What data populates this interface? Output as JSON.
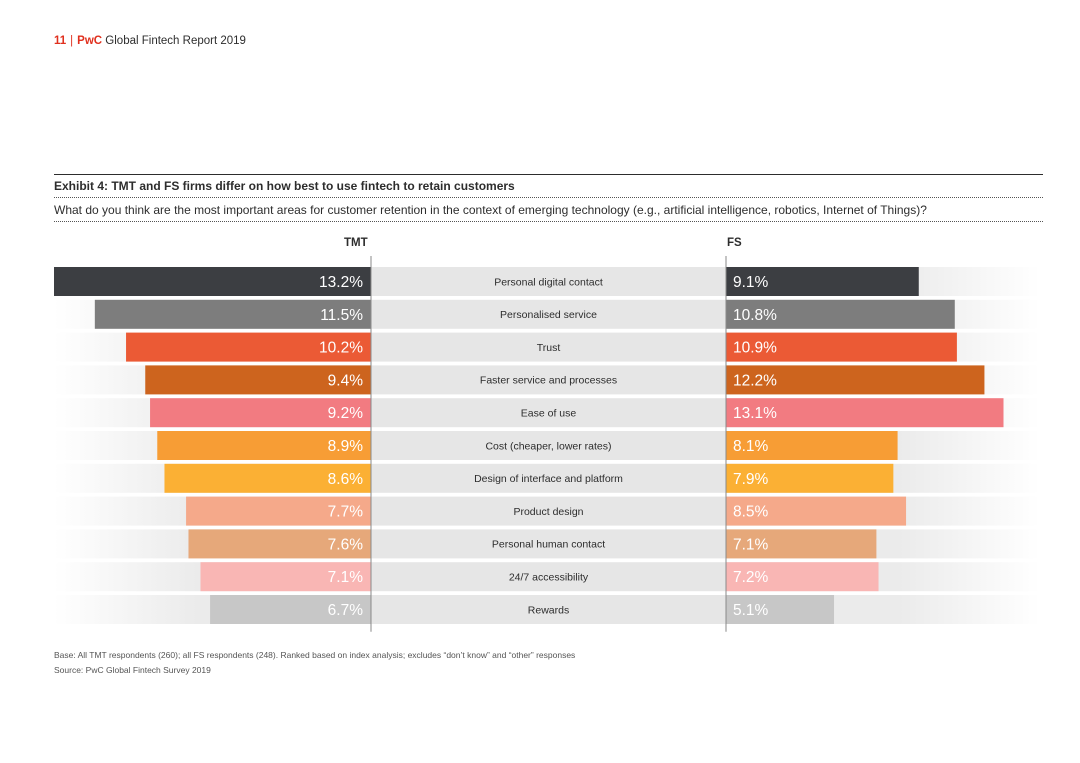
{
  "header": {
    "page_number": "11",
    "separator": "|",
    "brand": "PwC",
    "report_title": "Global Fintech Report 2019"
  },
  "exhibit": {
    "title": "Exhibit 4: TMT and FS firms differ on how best to use fintech to retain customers",
    "question": "What do you think are the most important areas for customer retention in the context of emerging technology (e.g., artificial intelligence, robotics, Internet of Things)?"
  },
  "chart_data": {
    "type": "bar",
    "layout": "butterfly",
    "series": [
      {
        "name": "TMT",
        "side": "left",
        "values": [
          13.2,
          11.5,
          10.2,
          9.4,
          9.2,
          8.9,
          8.6,
          7.7,
          7.6,
          7.1,
          6.7
        ],
        "labels": [
          "13.2%",
          "11.5%",
          "10.2%",
          "9.4%",
          "9.2%",
          "8.9%",
          "8.6%",
          "7.7%",
          "7.6%",
          "7.1%",
          "6.7%"
        ]
      },
      {
        "name": "FS",
        "side": "right",
        "values": [
          9.1,
          10.8,
          10.9,
          12.2,
          13.1,
          8.1,
          7.9,
          8.5,
          7.1,
          7.2,
          5.1
        ],
        "labels": [
          "9.1%",
          "10.8%",
          "10.9%",
          "12.2%",
          "13.1%",
          "8.1%",
          "7.9%",
          "8.5%",
          "7.1%",
          "7.2%",
          "5.1%"
        ]
      }
    ],
    "categories": [
      "Personal digital contact",
      "Personalised service",
      "Trust",
      "Faster service and processes",
      "Ease of use",
      "Cost (cheaper, lower rates)",
      "Design of interface and platform",
      "Product design",
      "Personal human contact",
      "24/7 accessibility",
      "Rewards"
    ],
    "colors": [
      "#3c3e42",
      "#7d7d7d",
      "#eb5a35",
      "#cd641e",
      "#f27b81",
      "#f79d35",
      "#fbb034",
      "#f5a98a",
      "#e6a87a",
      "#f9b6b4",
      "#c7c7c7"
    ],
    "axis_max": 13.2
  },
  "footer": {
    "base": "Base: All TMT respondents (260); all FS respondents (248). Ranked based on index analysis; excludes “don’t know” and “other” responses",
    "source": "Source: PwC Global Fintech Survey 2019"
  }
}
